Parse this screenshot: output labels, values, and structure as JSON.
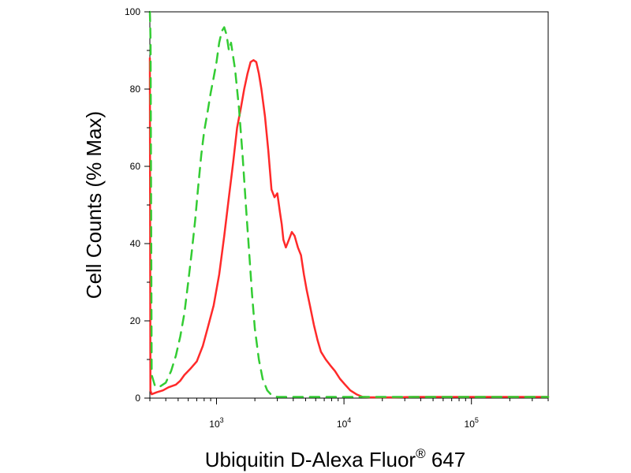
{
  "chart_data": {
    "type": "line",
    "title": "",
    "xlabel": "Ubiquitin D-Alexa Fluor",
    "xlabel_sup": "®",
    "xlabel_suffix": " 647",
    "ylabel": "Cell Counts (% Max)",
    "xscale": "log",
    "xlim": [
      300,
      400000
    ],
    "ylim": [
      0,
      100
    ],
    "x_ticks": [
      {
        "value": 1000,
        "base": "10",
        "exp": "3"
      },
      {
        "value": 10000,
        "base": "10",
        "exp": "4"
      },
      {
        "value": 100000,
        "base": "10",
        "exp": "5"
      }
    ],
    "y_ticks": [
      {
        "value": 0,
        "label": "0"
      },
      {
        "value": 20,
        "label": "20"
      },
      {
        "value": 40,
        "label": "40"
      },
      {
        "value": 60,
        "label": "60"
      },
      {
        "value": 80,
        "label": "80"
      },
      {
        "value": 100,
        "label": "100"
      }
    ],
    "grid": false,
    "series": [
      {
        "color": "#ff2a2a",
        "style": "solid",
        "x": [
          300,
          303,
          310,
          340,
          380,
          420,
          480,
          520,
          560,
          620,
          700,
          780,
          850,
          950,
          1050,
          1150,
          1250,
          1350,
          1450,
          1550,
          1650,
          1750,
          1850,
          1950,
          2050,
          2150,
          2250,
          2400,
          2550,
          2700,
          2850,
          3000,
          3150,
          3250,
          3350,
          3500,
          3700,
          3900,
          4100,
          4350,
          4600,
          4850,
          5100,
          5400,
          5800,
          6200,
          6600,
          7200,
          7800,
          8500,
          9300,
          10200,
          11200,
          12500,
          14000,
          16000,
          18000,
          21000,
          25000,
          35000,
          60000,
          120000,
          250000,
          400000
        ],
        "y": [
          88,
          2,
          1,
          1.5,
          2,
          2.8,
          3.5,
          4.5,
          6,
          7.5,
          9.5,
          13.5,
          18,
          24,
          32,
          42,
          52,
          61,
          70,
          75,
          80,
          84,
          87,
          87.5,
          87,
          84,
          80,
          73,
          64,
          54,
          52,
          53,
          48,
          45,
          41,
          39,
          41,
          43,
          42,
          39,
          37,
          32,
          28,
          24,
          19,
          15,
          12,
          10,
          8.5,
          7,
          5,
          3.5,
          2,
          1,
          0.3,
          0.2,
          0.2,
          0.2,
          0.2,
          0.3,
          0.3,
          0.3,
          0.3,
          0.3
        ]
      },
      {
        "color": "#33cc33",
        "style": "dashed",
        "x": [
          300,
          302,
          304,
          310,
          330,
          360,
          400,
          440,
          480,
          520,
          560,
          600,
          640,
          680,
          720,
          760,
          800,
          850,
          900,
          950,
          1000,
          1050,
          1100,
          1150,
          1200,
          1250,
          1300,
          1400,
          1500,
          1600,
          1700,
          1800,
          1900,
          2000,
          2150,
          2300,
          2500,
          2700,
          3000,
          3500,
          5000,
          10000,
          30000,
          100000,
          400000
        ],
        "y": [
          100,
          96,
          92,
          6,
          3,
          3,
          4,
          7,
          11,
          16,
          22,
          30,
          38,
          46,
          55,
          63,
          69,
          74,
          79,
          83,
          87,
          92,
          95,
          96,
          94,
          90,
          92,
          85,
          75,
          63,
          50,
          38,
          27,
          18,
          10,
          5,
          2,
          0.8,
          0.3,
          0.3,
          0.3,
          0.3,
          0.3,
          0.3,
          0.3
        ]
      }
    ]
  }
}
